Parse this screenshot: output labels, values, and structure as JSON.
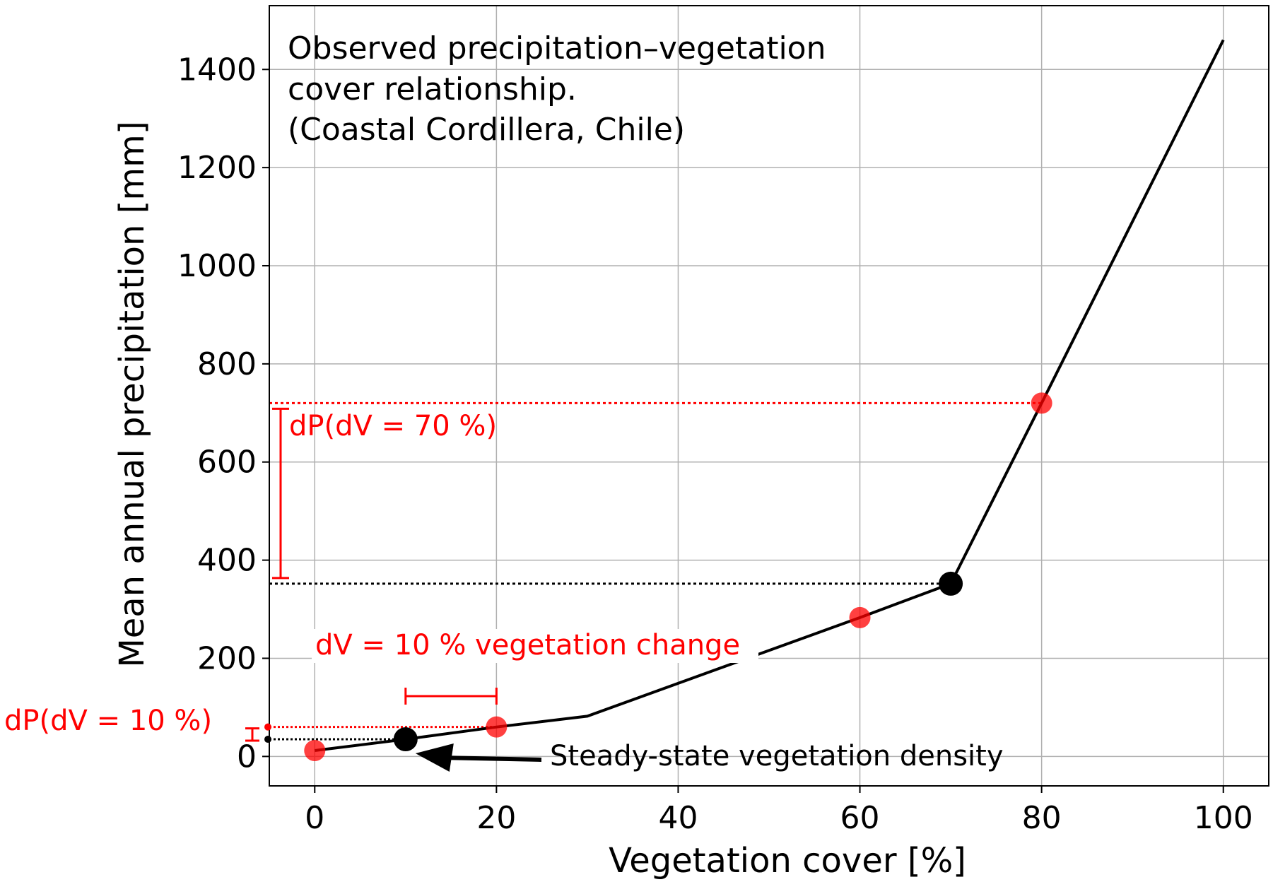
{
  "chart_data": {
    "type": "line",
    "title_lines": [
      "Observed precipitation–vegetation",
      "cover relationship.",
      "(Coastal Cordillera, Chile)"
    ],
    "xlabel": "Vegetation cover [%]",
    "ylabel": "Mean annual precipitation [mm]",
    "xlim": [
      -5,
      105
    ],
    "ylim": [
      -60,
      1530
    ],
    "xticks": [
      0,
      20,
      40,
      60,
      80,
      100
    ],
    "yticks": [
      0,
      200,
      400,
      600,
      800,
      1000,
      1200,
      1400
    ],
    "grid": true,
    "curve": {
      "x": [
        0,
        10,
        20,
        30,
        60,
        70,
        80,
        100
      ],
      "y": [
        12,
        35,
        60,
        82,
        283,
        352,
        720,
        1460
      ]
    },
    "red_points": {
      "x": [
        0,
        20,
        60,
        80
      ],
      "y": [
        12,
        60,
        283,
        720
      ]
    },
    "black_points": {
      "x": [
        10,
        70
      ],
      "y": [
        35,
        352
      ]
    },
    "annotations": {
      "dp70_label": "dP(dV = 70 %)",
      "dp10_label": "dP(dV = 10 %)",
      "dv_label": "dV = 10 % vegetation change",
      "steady_label": "Steady-state vegetation density"
    }
  }
}
